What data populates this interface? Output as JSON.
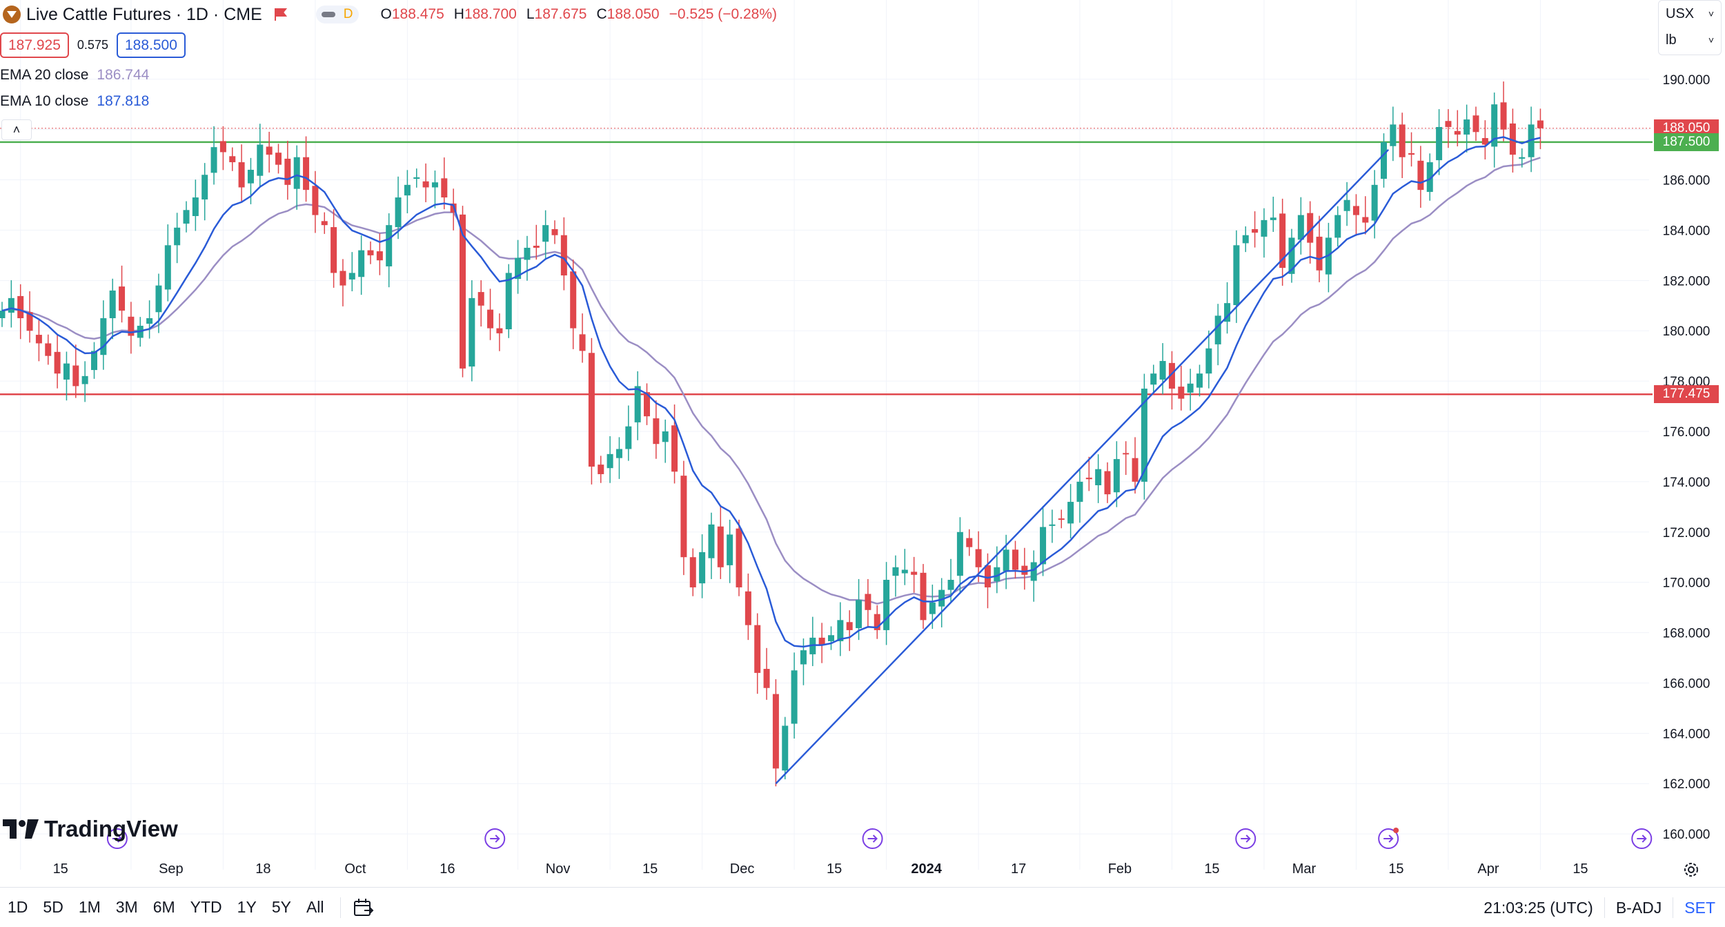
{
  "header": {
    "title": "Live Cattle Futures · 1D · CME",
    "pill_badge": "D",
    "ohlc": [
      {
        "key": "O",
        "value": "188.475"
      },
      {
        "key": "H",
        "value": "188.700"
      },
      {
        "key": "L",
        "value": "187.675"
      },
      {
        "key": "C",
        "value": "188.050"
      },
      {
        "key": "",
        "value": "−0.525 (−0.28%)"
      }
    ]
  },
  "quote": {
    "sell": "187.925",
    "spread": "0.575",
    "buy": "188.500"
  },
  "indicators": [
    {
      "label": "EMA 20 close",
      "value": "186.744",
      "color": "#9b8ec4"
    },
    {
      "label": "EMA 10 close",
      "value": "187.818",
      "color": "#2a5bd7"
    }
  ],
  "units": {
    "currency": "USX",
    "unit": "lb"
  },
  "price_labels": {
    "last": {
      "text": "188.050",
      "color": "#e0474c"
    },
    "resistance": {
      "text": "187.500",
      "color": "#4caf50"
    },
    "support": {
      "text": "177.475",
      "color": "#e0474c"
    }
  },
  "branding": {
    "name": "TradingView"
  },
  "timeframes": [
    "1D",
    "5D",
    "1M",
    "3M",
    "6M",
    "YTD",
    "1Y",
    "5Y",
    "All"
  ],
  "status": {
    "clock": "21:03:25 (UTC)",
    "adjustment": "B-ADJ",
    "session": "SET"
  },
  "colors": {
    "up": "#26a69a",
    "down": "#e0474c",
    "ema10": "#2a5bd7",
    "ema20": "#9b8ec4",
    "trendline": "#2a5bd7",
    "resistance_line": "#4caf50",
    "support_line": "#e0474c",
    "accent": "#2962ff"
  },
  "chart_data": {
    "type": "candlestick",
    "symbol": "Live Cattle Futures",
    "interval": "1D",
    "y_ticks": [
      160,
      162,
      164,
      166,
      168,
      170,
      172,
      174,
      176,
      178,
      180,
      182,
      184,
      186,
      188,
      190
    ],
    "y_tick_labels": [
      "160.000",
      "162.000",
      "164.000",
      "166.000",
      "168.000",
      "170.000",
      "172.000",
      "174.000",
      "176.000",
      "178.000",
      "180.000",
      "182.000",
      "184.000",
      "186.000",
      "188.000",
      "190.000"
    ],
    "ylim": [
      159.4,
      192.6
    ],
    "x_ticks": [
      {
        "label": "15",
        "bar": 2
      },
      {
        "label": "Sep",
        "bar": 14
      },
      {
        "label": "18",
        "bar": 24
      },
      {
        "label": "Oct",
        "bar": 34
      },
      {
        "label": "16",
        "bar": 44
      },
      {
        "label": "Nov",
        "bar": 56
      },
      {
        "label": "15",
        "bar": 66
      },
      {
        "label": "Dec",
        "bar": 76
      },
      {
        "label": "15",
        "bar": 86
      },
      {
        "label": "2024",
        "bar": 96,
        "bold": true
      },
      {
        "label": "17",
        "bar": 106
      },
      {
        "label": "Feb",
        "bar": 117
      },
      {
        "label": "15",
        "bar": 127
      },
      {
        "label": "Mar",
        "bar": 137
      },
      {
        "label": "15",
        "bar": 147
      },
      {
        "label": "Apr",
        "bar": 157
      },
      {
        "label": "15",
        "bar": 167
      }
    ],
    "horizontal_levels": [
      {
        "value": 187.5,
        "role": "resistance"
      },
      {
        "value": 177.475,
        "role": "support"
      },
      {
        "value": 188.05,
        "role": "last-price"
      }
    ],
    "trendline": [
      {
        "bar": 84,
        "value": 162.0
      },
      {
        "bar": 150.5,
        "value": 187.2
      }
    ],
    "event_markers": [
      {
        "bar": 12.5
      },
      {
        "bar": 53.5
      },
      {
        "bar": 94.5
      },
      {
        "bar": 135
      },
      {
        "bar": 150.5,
        "highlight": true
      },
      {
        "bar": 178
      }
    ],
    "closes": [
      180.8,
      181.3,
      180.5,
      180.0,
      179.5,
      179.0,
      178.3,
      178.7,
      177.8,
      178.2,
      179.2,
      180.5,
      181.6,
      180.8,
      179.8,
      180.2,
      180.5,
      181.8,
      183.4,
      184.1,
      184.8,
      185.3,
      186.2,
      187.3,
      187.1,
      186.7,
      185.7,
      186.4,
      187.4,
      187.0,
      186.6,
      185.8,
      186.9,
      185.6,
      184.6,
      184.2,
      182.3,
      181.8,
      182.3,
      183.2,
      183.0,
      182.8,
      184.2,
      185.3,
      185.8,
      186.1,
      185.7,
      185.9,
      185.3,
      184.7,
      178.5,
      181.3,
      181.0,
      180.1,
      179.9,
      182.3,
      182.9,
      183.3,
      183.3,
      184.2,
      183.8,
      182.2,
      180.1,
      179.2,
      174.6,
      174.3,
      175.1,
      175.3,
      176.2,
      177.8,
      176.6,
      175.5,
      176.0,
      174.4,
      171.0,
      169.8,
      171.2,
      172.3,
      170.6,
      171.9,
      169.8,
      168.3,
      166.4,
      165.8,
      162.6,
      164.3,
      166.5,
      167.3,
      167.8,
      167.5,
      167.9,
      168.5,
      168.1,
      169.3,
      168.9,
      168.1,
      170.1,
      170.6,
      170.5,
      170.3,
      168.5,
      169.2,
      169.7,
      170.1,
      172.0,
      171.4,
      170.6,
      169.8,
      170.6,
      171.3,
      170.5,
      170.3,
      170.8,
      172.2,
      172.3,
      172.5,
      173.2,
      174.0,
      174.1,
      174.5,
      173.5,
      174.9,
      175.1,
      174.0,
      177.7,
      178.3,
      178.8,
      177.7,
      177.3,
      177.9,
      178.3,
      179.3,
      180.6,
      181.1,
      183.4,
      183.8,
      183.9,
      184.4,
      184.5,
      182.5,
      183.7,
      184.6,
      183.5,
      182.4,
      183.7,
      184.6,
      185.2,
      184.6,
      184.3,
      185.8,
      187.5,
      188.2,
      186.9,
      187.0,
      185.6,
      186.7,
      188.1,
      188.1,
      187.8,
      188.4,
      187.9,
      187.4,
      189.0,
      188.0,
      187.0,
      186.9,
      188.2,
      188.05
    ]
  }
}
